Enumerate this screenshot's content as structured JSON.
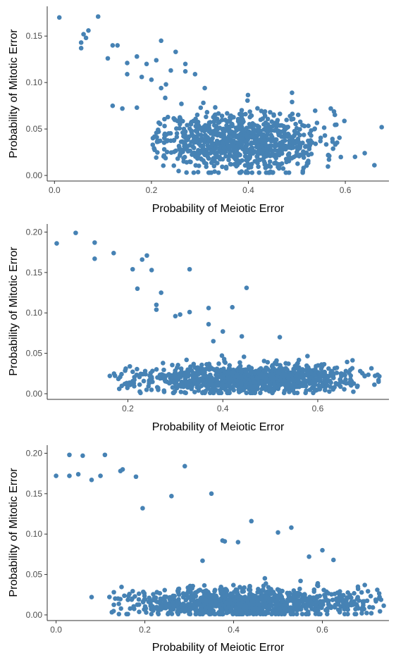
{
  "figure": {
    "background": "#ffffff",
    "point_color": "#4682B4",
    "axis_color": "#333333"
  },
  "chart_data": [
    {
      "type": "scatter",
      "title": "",
      "xlabel": "Probability of Meiotic Error",
      "ylabel": "Probability of Mitotic Error",
      "xlim": [
        -0.015,
        0.69
      ],
      "ylim": [
        -0.006,
        0.182
      ],
      "xticks": [
        0.0,
        0.2,
        0.4,
        0.6
      ],
      "xtick_labels": [
        "0.0",
        "0.2",
        "0.4",
        "0.6"
      ],
      "yticks": [
        0.0,
        0.05,
        0.1,
        0.15
      ],
      "ytick_labels": [
        "0.00",
        "0.05",
        "0.10",
        "0.15"
      ],
      "grid": false,
      "legend": "none",
      "outliers": [
        [
          0.01,
          0.17
        ],
        [
          0.09,
          0.171
        ],
        [
          0.06,
          0.152
        ],
        [
          0.07,
          0.156
        ],
        [
          0.055,
          0.143
        ],
        [
          0.055,
          0.137
        ],
        [
          0.065,
          0.148
        ],
        [
          0.12,
          0.14
        ],
        [
          0.13,
          0.14
        ],
        [
          0.15,
          0.121
        ],
        [
          0.11,
          0.126
        ],
        [
          0.22,
          0.145
        ],
        [
          0.25,
          0.133
        ],
        [
          0.17,
          0.128
        ],
        [
          0.21,
          0.124
        ],
        [
          0.15,
          0.109
        ],
        [
          0.19,
          0.12
        ],
        [
          0.24,
          0.113
        ],
        [
          0.27,
          0.12
        ],
        [
          0.27,
          0.112
        ],
        [
          0.29,
          0.109
        ],
        [
          0.18,
          0.106
        ],
        [
          0.2,
          0.103
        ],
        [
          0.23,
          0.098
        ],
        [
          0.22,
          0.094
        ],
        [
          0.12,
          0.075
        ],
        [
          0.14,
          0.072
        ],
        [
          0.17,
          0.073
        ],
        [
          0.31,
          0.094
        ],
        [
          0.66,
          0.011
        ],
        [
          0.675,
          0.052
        ],
        [
          0.64,
          0.024
        ],
        [
          0.62,
          0.02
        ],
        [
          0.49,
          0.089
        ],
        [
          0.57,
          0.072
        ]
      ],
      "cluster": {
        "x_mean": 0.38,
        "x_sd": 0.085,
        "y_mean": 0.037,
        "y_sd": 0.016,
        "x_range": [
          0.2,
          0.6
        ],
        "y_range": [
          0.003,
          0.09
        ],
        "n": 900
      }
    },
    {
      "type": "scatter",
      "title": "",
      "xlabel": "Probability of Meiotic Error",
      "ylabel": "Probability of Mitotic Error",
      "xlim": [
        0.03,
        0.75
      ],
      "ylim": [
        -0.007,
        0.21
      ],
      "xticks": [
        0.2,
        0.4,
        0.6
      ],
      "xtick_labels": [
        "0.2",
        "0.4",
        "0.6"
      ],
      "yticks": [
        0.0,
        0.05,
        0.1,
        0.15,
        0.2
      ],
      "ytick_labels": [
        "0.00",
        "0.05",
        "0.10",
        "0.15",
        "0.20"
      ],
      "grid": false,
      "legend": "none",
      "outliers": [
        [
          0.05,
          0.186
        ],
        [
          0.09,
          0.199
        ],
        [
          0.13,
          0.187
        ],
        [
          0.13,
          0.167
        ],
        [
          0.17,
          0.174
        ],
        [
          0.21,
          0.154
        ],
        [
          0.23,
          0.166
        ],
        [
          0.24,
          0.171
        ],
        [
          0.25,
          0.153
        ],
        [
          0.22,
          0.13
        ],
        [
          0.27,
          0.125
        ],
        [
          0.33,
          0.154
        ],
        [
          0.26,
          0.11
        ],
        [
          0.26,
          0.104
        ],
        [
          0.3,
          0.096
        ],
        [
          0.31,
          0.098
        ],
        [
          0.33,
          0.101
        ],
        [
          0.37,
          0.106
        ],
        [
          0.37,
          0.086
        ],
        [
          0.4,
          0.077
        ],
        [
          0.42,
          0.107
        ],
        [
          0.45,
          0.131
        ],
        [
          0.44,
          0.071
        ],
        [
          0.38,
          0.065
        ],
        [
          0.52,
          0.07
        ]
      ],
      "cluster": {
        "x_mean": 0.45,
        "x_sd": 0.12,
        "y_mean": 0.018,
        "y_sd": 0.009,
        "x_range": [
          0.16,
          0.73
        ],
        "y_range": [
          0.001,
          0.058
        ],
        "n": 1000
      }
    },
    {
      "type": "scatter",
      "title": "",
      "xlabel": "Probability of Meiotic Error",
      "ylabel": "Probability of Mitotic Error",
      "xlim": [
        -0.02,
        0.75
      ],
      "ylim": [
        -0.007,
        0.21
      ],
      "xticks": [
        0.0,
        0.2,
        0.4,
        0.6
      ],
      "xtick_labels": [
        "0.0",
        "0.2",
        "0.4",
        "0.6"
      ],
      "yticks": [
        0.0,
        0.05,
        0.1,
        0.15,
        0.2
      ],
      "ytick_labels": [
        "0.00",
        "0.05",
        "0.10",
        "0.15",
        "0.20"
      ],
      "grid": false,
      "legend": "none",
      "outliers": [
        [
          0.0,
          0.172
        ],
        [
          0.03,
          0.198
        ],
        [
          0.03,
          0.172
        ],
        [
          0.05,
          0.174
        ],
        [
          0.06,
          0.197
        ],
        [
          0.08,
          0.167
        ],
        [
          0.1,
          0.172
        ],
        [
          0.11,
          0.198
        ],
        [
          0.15,
          0.18
        ],
        [
          0.145,
          0.178
        ],
        [
          0.18,
          0.171
        ],
        [
          0.29,
          0.184
        ],
        [
          0.195,
          0.132
        ],
        [
          0.26,
          0.147
        ],
        [
          0.35,
          0.15
        ],
        [
          0.44,
          0.116
        ],
        [
          0.38,
          0.091
        ],
        [
          0.375,
          0.092
        ],
        [
          0.41,
          0.09
        ],
        [
          0.5,
          0.102
        ],
        [
          0.53,
          0.108
        ],
        [
          0.33,
          0.067
        ],
        [
          0.08,
          0.022
        ],
        [
          0.6,
          0.08
        ],
        [
          0.625,
          0.068
        ],
        [
          0.57,
          0.072
        ]
      ],
      "cluster": {
        "x_mean": 0.43,
        "x_sd": 0.14,
        "y_mean": 0.015,
        "y_sd": 0.009,
        "x_range": [
          0.12,
          0.74
        ],
        "y_range": [
          0.001,
          0.055
        ],
        "n": 1000
      }
    }
  ]
}
